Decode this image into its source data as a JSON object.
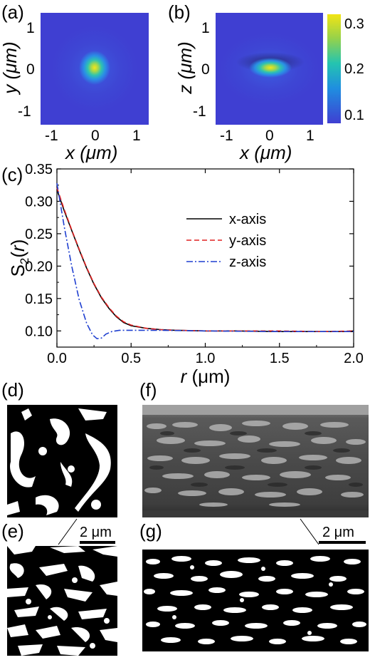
{
  "figure": {
    "panels": {
      "a": {
        "letter": "(a)",
        "xlabel": "x (μm)",
        "ylabel": "y (μm)"
      },
      "b": {
        "letter": "(b)",
        "xlabel": "x (μm)",
        "ylabel": "z (μm)"
      },
      "c": {
        "letter": "(c)"
      },
      "d": {
        "letter": "(d)"
      },
      "e": {
        "letter": "(e)"
      },
      "f": {
        "letter": "(f)"
      },
      "g": {
        "letter": "(g)"
      }
    },
    "heatmap_ticks": [
      "-1",
      "0",
      "1"
    ],
    "colorbar": {
      "ticks": [
        "0.3",
        "0.2",
        "0.1"
      ],
      "colors": [
        "#3f3fd2",
        "#1f8ee0",
        "#24c4b0",
        "#96d24a",
        "#f2e414"
      ]
    },
    "scalebars": {
      "left": "2 μm",
      "right": "2 μm"
    }
  },
  "chart_data": [
    {
      "type": "heatmap",
      "panel": "a",
      "xlabel": "x (μm)",
      "ylabel": "y (μm)",
      "xlim": [
        -1.35,
        1.35
      ],
      "ylim": [
        -1.35,
        1.35
      ],
      "peak": {
        "x": 0,
        "y": 0,
        "value": 0.32
      },
      "background_value": 0.1
    },
    {
      "type": "heatmap",
      "panel": "b",
      "xlabel": "x (μm)",
      "ylabel": "z (μm)",
      "xlim": [
        -1.35,
        1.35
      ],
      "ylim": [
        -1.35,
        1.35
      ],
      "peak": {
        "x": 0,
        "y": 0,
        "value": 0.32
      },
      "background_value": 0.1,
      "colorbar_range": [
        0.09,
        0.32
      ]
    },
    {
      "type": "line",
      "panel": "c",
      "xlabel": "r (μm)",
      "ylabel": "S2(r)",
      "xlim": [
        0,
        2.0
      ],
      "ylim": [
        0.075,
        0.35
      ],
      "xticks": [
        "0.0",
        "0.5",
        "1.0",
        "1.5",
        "2.0"
      ],
      "yticks": [
        "0.10",
        "0.15",
        "0.20",
        "0.25",
        "0.30",
        "0.35"
      ],
      "legend_position": "upper-right",
      "series": [
        {
          "name": "x-axis",
          "color": "#000000",
          "dash": "solid",
          "x": [
            0,
            0.05,
            0.1,
            0.15,
            0.2,
            0.25,
            0.3,
            0.35,
            0.4,
            0.45,
            0.5,
            0.6,
            0.7,
            0.8,
            1.0,
            1.2,
            1.5,
            1.8,
            2.0
          ],
          "y": [
            0.318,
            0.285,
            0.255,
            0.225,
            0.197,
            0.172,
            0.151,
            0.135,
            0.122,
            0.113,
            0.108,
            0.104,
            0.102,
            0.101,
            0.1,
            0.1,
            0.099,
            0.099,
            0.099
          ]
        },
        {
          "name": "y-axis",
          "color": "#e02020",
          "dash": "dashed",
          "x": [
            0,
            0.05,
            0.1,
            0.15,
            0.2,
            0.25,
            0.3,
            0.35,
            0.4,
            0.45,
            0.5,
            0.6,
            0.7,
            0.8,
            1.0,
            1.2,
            1.5,
            1.8,
            2.0
          ],
          "y": [
            0.321,
            0.287,
            0.256,
            0.226,
            0.198,
            0.173,
            0.152,
            0.136,
            0.123,
            0.114,
            0.109,
            0.104,
            0.102,
            0.101,
            0.1,
            0.1,
            0.1,
            0.099,
            0.1
          ]
        },
        {
          "name": "z-axis",
          "color": "#1f3fd0",
          "dash": "dashdot",
          "x": [
            0,
            0.05,
            0.1,
            0.15,
            0.2,
            0.24,
            0.27,
            0.3,
            0.33,
            0.37,
            0.42,
            0.5,
            0.7,
            1.0,
            1.5,
            2.0
          ],
          "y": [
            0.328,
            0.26,
            0.2,
            0.148,
            0.112,
            0.094,
            0.088,
            0.089,
            0.095,
            0.099,
            0.101,
            0.101,
            0.101,
            0.1,
            0.099,
            0.099
          ]
        }
      ]
    }
  ]
}
